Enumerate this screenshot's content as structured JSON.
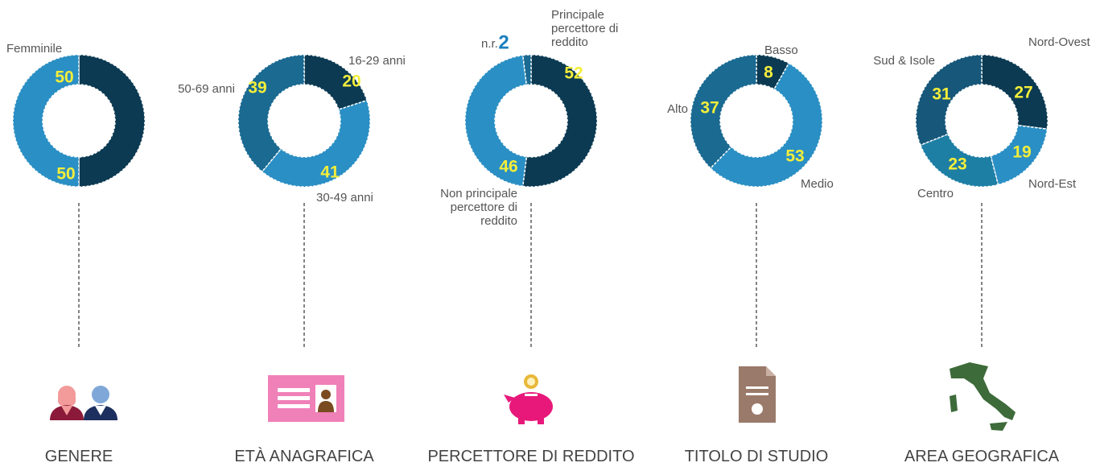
{
  "chart_data": [
    {
      "type": "pie",
      "title": "GENERE",
      "categories": [
        null,
        "Femminile"
      ],
      "values": [
        50,
        50
      ],
      "colors": [
        "#0b3a52",
        "#2a8fc4"
      ]
    },
    {
      "type": "pie",
      "title": "ETÀ ANAGRAFICA",
      "categories": [
        "16-29 anni",
        "30-49 anni",
        "50-69 anni"
      ],
      "values": [
        20,
        41,
        39
      ],
      "colors": [
        "#0b3a52",
        "#2a8fc4",
        "#1a6a92"
      ]
    },
    {
      "type": "pie",
      "title": "PERCETTORE DI REDDITO",
      "categories": [
        "Principale percettore di reddito",
        "Non principale percettore di reddito",
        "n.r."
      ],
      "values": [
        52,
        46,
        2
      ],
      "colors": [
        "#0b3a52",
        "#2a8fc4",
        "#1a6a92"
      ]
    },
    {
      "type": "pie",
      "title": "TITOLO DI STUDIO",
      "categories": [
        "Basso",
        "Medio",
        "Alto"
      ],
      "values": [
        8,
        53,
        37
      ],
      "colors": [
        "#0b3a52",
        "#2a8fc4",
        "#1a6a92"
      ]
    },
    {
      "type": "pie",
      "title": "AREA GEOGRAFICA",
      "categories": [
        "Nord-Ovest",
        "Nord-Est",
        "Centro",
        "Sud & Isole"
      ],
      "values": [
        27,
        19,
        23,
        31
      ],
      "colors": [
        "#0b3a52",
        "#2a8fc4",
        "#1e7fa5",
        "#16577a"
      ]
    }
  ]
}
